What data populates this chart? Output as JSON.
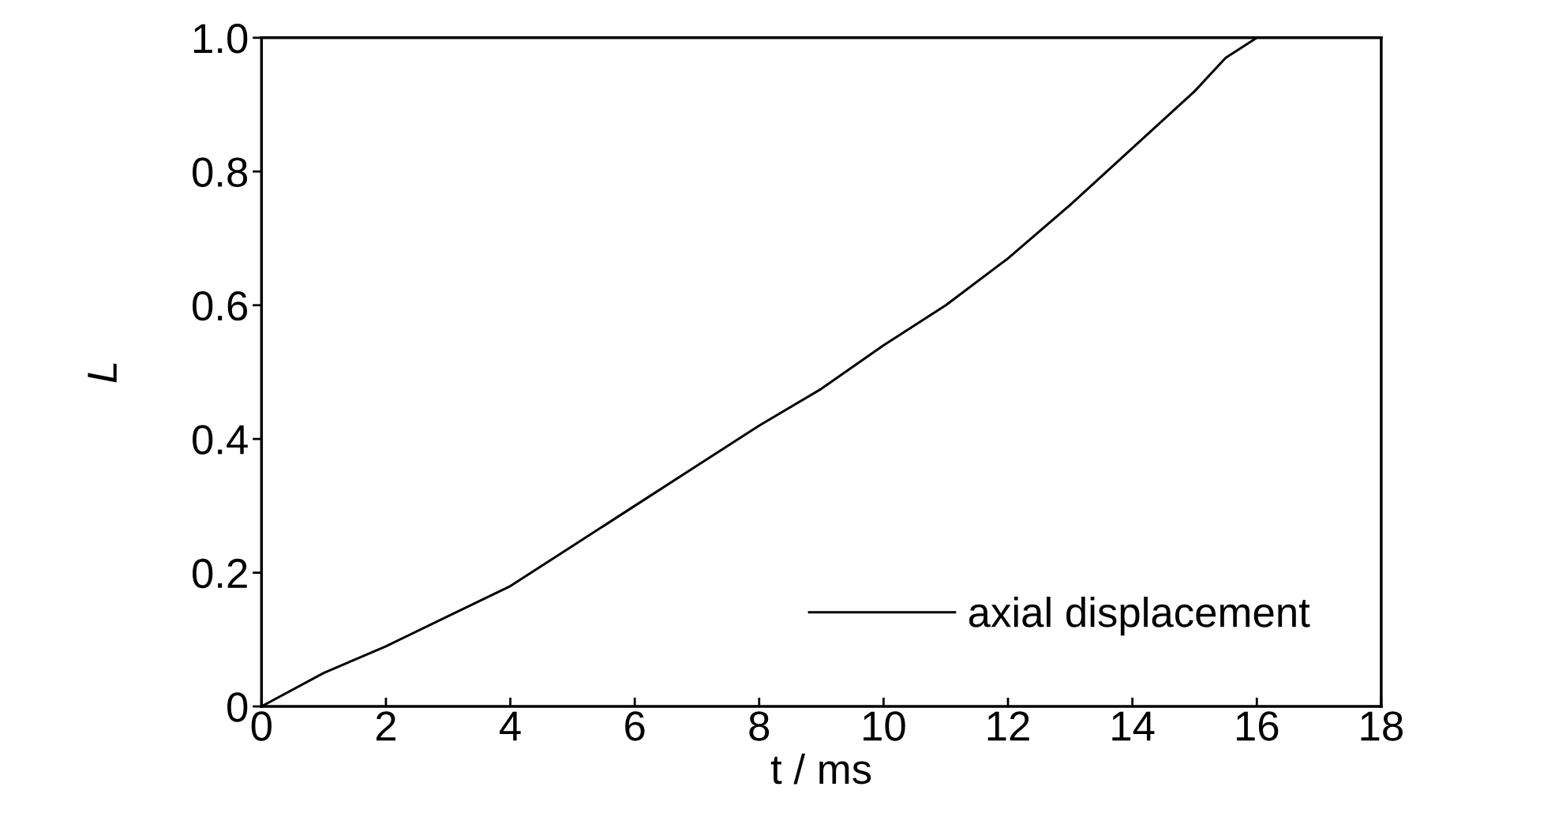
{
  "chart_data": {
    "type": "line",
    "xlabel": "t / ms",
    "ylabel": "L",
    "xlim": [
      0,
      18
    ],
    "xticks": [
      0,
      2,
      4,
      6,
      8,
      10,
      12,
      14,
      16,
      18
    ],
    "ylim": [
      0,
      1.0
    ],
    "yticks": [
      0,
      {
        "value": 0.2,
        "label": "0.2"
      },
      {
        "value": 0.4,
        "label": "0.4"
      },
      {
        "value": 0.6,
        "label": "0.6"
      },
      {
        "value": 0.8,
        "label": "0.8"
      },
      {
        "value": 1.0,
        "label": "1.0"
      }
    ],
    "grid": false,
    "legend": "bottom right",
    "marker": "none",
    "line_style": "solid",
    "series": [
      {
        "name": "axial displacement",
        "color": "#000000",
        "x": [
          0,
          1,
          2,
          3,
          4,
          5,
          6,
          7,
          8,
          9,
          10,
          11,
          12,
          13,
          14,
          15,
          15.5,
          16
        ],
        "values": [
          0,
          0.05,
          0.09,
          0.135,
          0.18,
          0.24,
          0.3,
          0.36,
          0.42,
          0.475,
          0.54,
          0.6,
          0.67,
          0.75,
          0.835,
          0.92,
          0.97,
          1.0
        ]
      }
    ]
  }
}
